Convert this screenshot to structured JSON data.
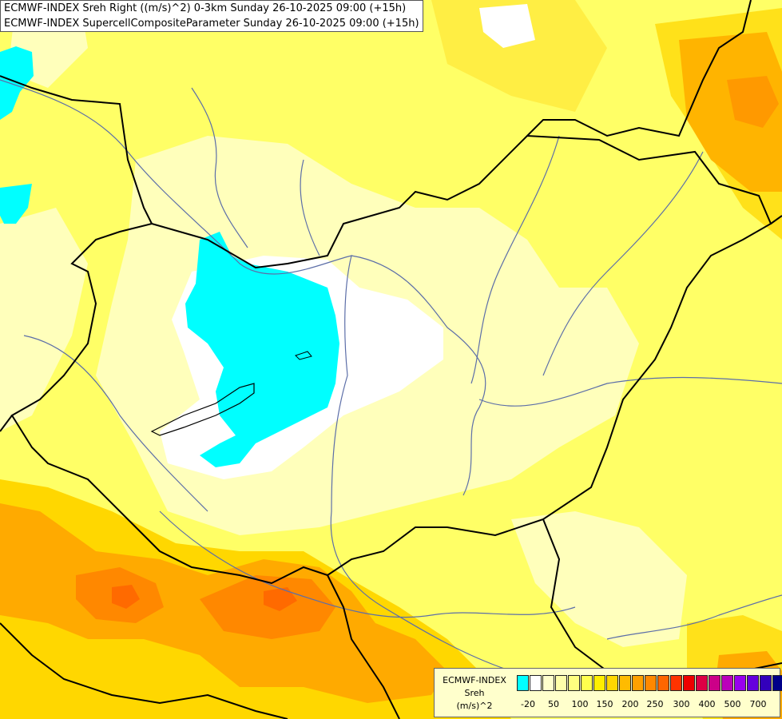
{
  "title": {
    "line1": "ECMWF-INDEX Sreh Right ((m/s)^2) 0-3km Sunday 26-10-2025 09:00 (+15h)",
    "line2": "ECMWF-INDEX SupercellCompositeParameter Sunday 26-10-2025 09:00 (+15h)"
  },
  "colors": {
    "base_yellow": "#ffff66",
    "pale_yellow": "#ffffbb",
    "white": "#ffffff",
    "cyan": "#00ffff",
    "gold": "#ffe11a",
    "orange": "#ffaa00",
    "dark_orange": "#ff7700",
    "border": "#000000",
    "river": "#5c6ea8"
  },
  "legend": {
    "line1": "ECMWF-INDEX",
    "line2": "Sreh",
    "line3": "(m/s)^2",
    "swatch_colors": [
      "#00ffff",
      "#ffffff",
      "#ffffcc",
      "#ffffaa",
      "#ffff80",
      "#ffff4d",
      "#ffee00",
      "#ffd700",
      "#ffbb00",
      "#ffa000",
      "#ff8800",
      "#ff6600",
      "#ff3300",
      "#ee0000",
      "#dd0044",
      "#cc0088",
      "#bb00bb",
      "#9900ee",
      "#6600dd",
      "#3300bb",
      "#000088"
    ],
    "tick_labels": [
      "-20",
      "50",
      "100",
      "150",
      "200",
      "250",
      "300",
      "400",
      "500",
      "700"
    ]
  }
}
